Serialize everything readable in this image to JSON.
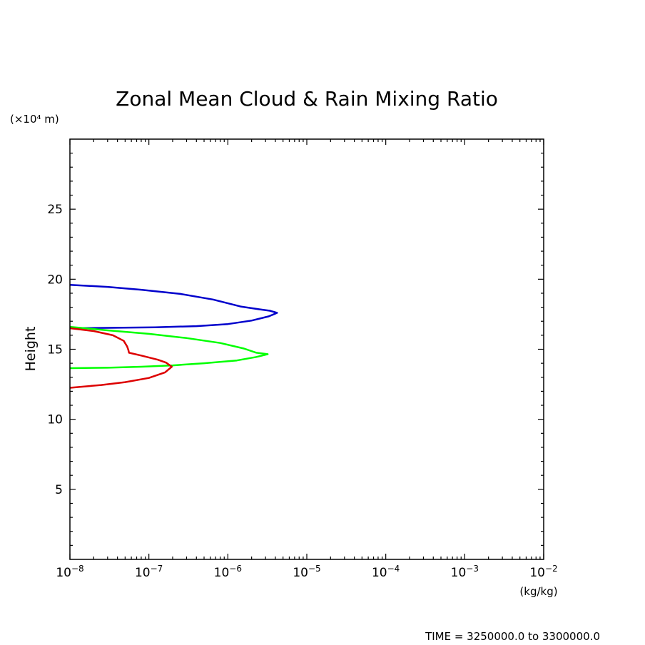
{
  "chart_data": {
    "type": "line",
    "title": "Zonal Mean Cloud & Rain Mixing Ratio",
    "ylabel": "Height",
    "y_unit_label": "(×10⁴ m)",
    "x_unit_label": "(kg/kg)",
    "x_scale": "log",
    "xlim": [
      1e-08,
      0.01
    ],
    "ylim": [
      0,
      30
    ],
    "x_ticks": [
      1e-08,
      1e-07,
      1e-06,
      1e-05,
      0.0001,
      0.001,
      0.01
    ],
    "x_tick_labels": [
      {
        "base": "10",
        "exp": "−8"
      },
      {
        "base": "10",
        "exp": "−7"
      },
      {
        "base": "10",
        "exp": "−6"
      },
      {
        "base": "10",
        "exp": "−5"
      },
      {
        "base": "10",
        "exp": "−4"
      },
      {
        "base": "10",
        "exp": "−3"
      },
      {
        "base": "10",
        "exp": "−2"
      }
    ],
    "y_ticks": [
      5,
      10,
      15,
      20,
      25
    ],
    "y_tick_labels": [
      "5",
      "10",
      "15",
      "20",
      "25"
    ],
    "y_minor_step": 1,
    "grid": false,
    "footer": "TIME = 3250000.0 to 3300000.0",
    "series": [
      {
        "color": "#0000cc",
        "points": [
          [
            1e-08,
            19.6
          ],
          [
            3e-08,
            19.45
          ],
          [
            8e-08,
            19.25
          ],
          [
            2.5e-07,
            18.95
          ],
          [
            6.5e-07,
            18.55
          ],
          [
            1.45e-06,
            18.05
          ],
          [
            2.5e-06,
            17.85
          ],
          [
            3.4e-06,
            17.75
          ],
          [
            4.2e-06,
            17.6
          ],
          [
            3.3e-06,
            17.35
          ],
          [
            2e-06,
            17.05
          ],
          [
            1e-06,
            16.8
          ],
          [
            4e-07,
            16.65
          ],
          [
            1.2e-07,
            16.57
          ],
          [
            3e-08,
            16.53
          ],
          [
            1e-08,
            16.5
          ]
        ]
      },
      {
        "color": "#00ff00",
        "points": [
          [
            1e-08,
            16.6
          ],
          [
            3e-08,
            16.35
          ],
          [
            1e-07,
            16.1
          ],
          [
            3e-07,
            15.8
          ],
          [
            8e-07,
            15.45
          ],
          [
            1.6e-06,
            15.05
          ],
          [
            2.3e-06,
            14.75
          ],
          [
            3.2e-06,
            14.65
          ],
          [
            2.3e-06,
            14.45
          ],
          [
            1.3e-06,
            14.2
          ],
          [
            5e-07,
            14.0
          ],
          [
            2e-07,
            13.85
          ],
          [
            8e-08,
            13.75
          ],
          [
            3e-08,
            13.68
          ],
          [
            1e-08,
            13.65
          ]
        ]
      },
      {
        "color": "#dd0000",
        "points": [
          [
            1e-08,
            16.5
          ],
          [
            2e-08,
            16.3
          ],
          [
            3.5e-08,
            16.0
          ],
          [
            4.8e-08,
            15.6
          ],
          [
            5.3e-08,
            15.2
          ],
          [
            5.5e-08,
            14.95
          ],
          [
            5.6e-08,
            14.75
          ],
          [
            8e-08,
            14.55
          ],
          [
            1.3e-07,
            14.25
          ],
          [
            1.65e-07,
            14.05
          ],
          [
            1.95e-07,
            13.75
          ],
          [
            1.6e-07,
            13.35
          ],
          [
            1e-07,
            12.95
          ],
          [
            5e-08,
            12.65
          ],
          [
            2.5e-08,
            12.45
          ],
          [
            1e-08,
            12.25
          ]
        ]
      }
    ]
  }
}
